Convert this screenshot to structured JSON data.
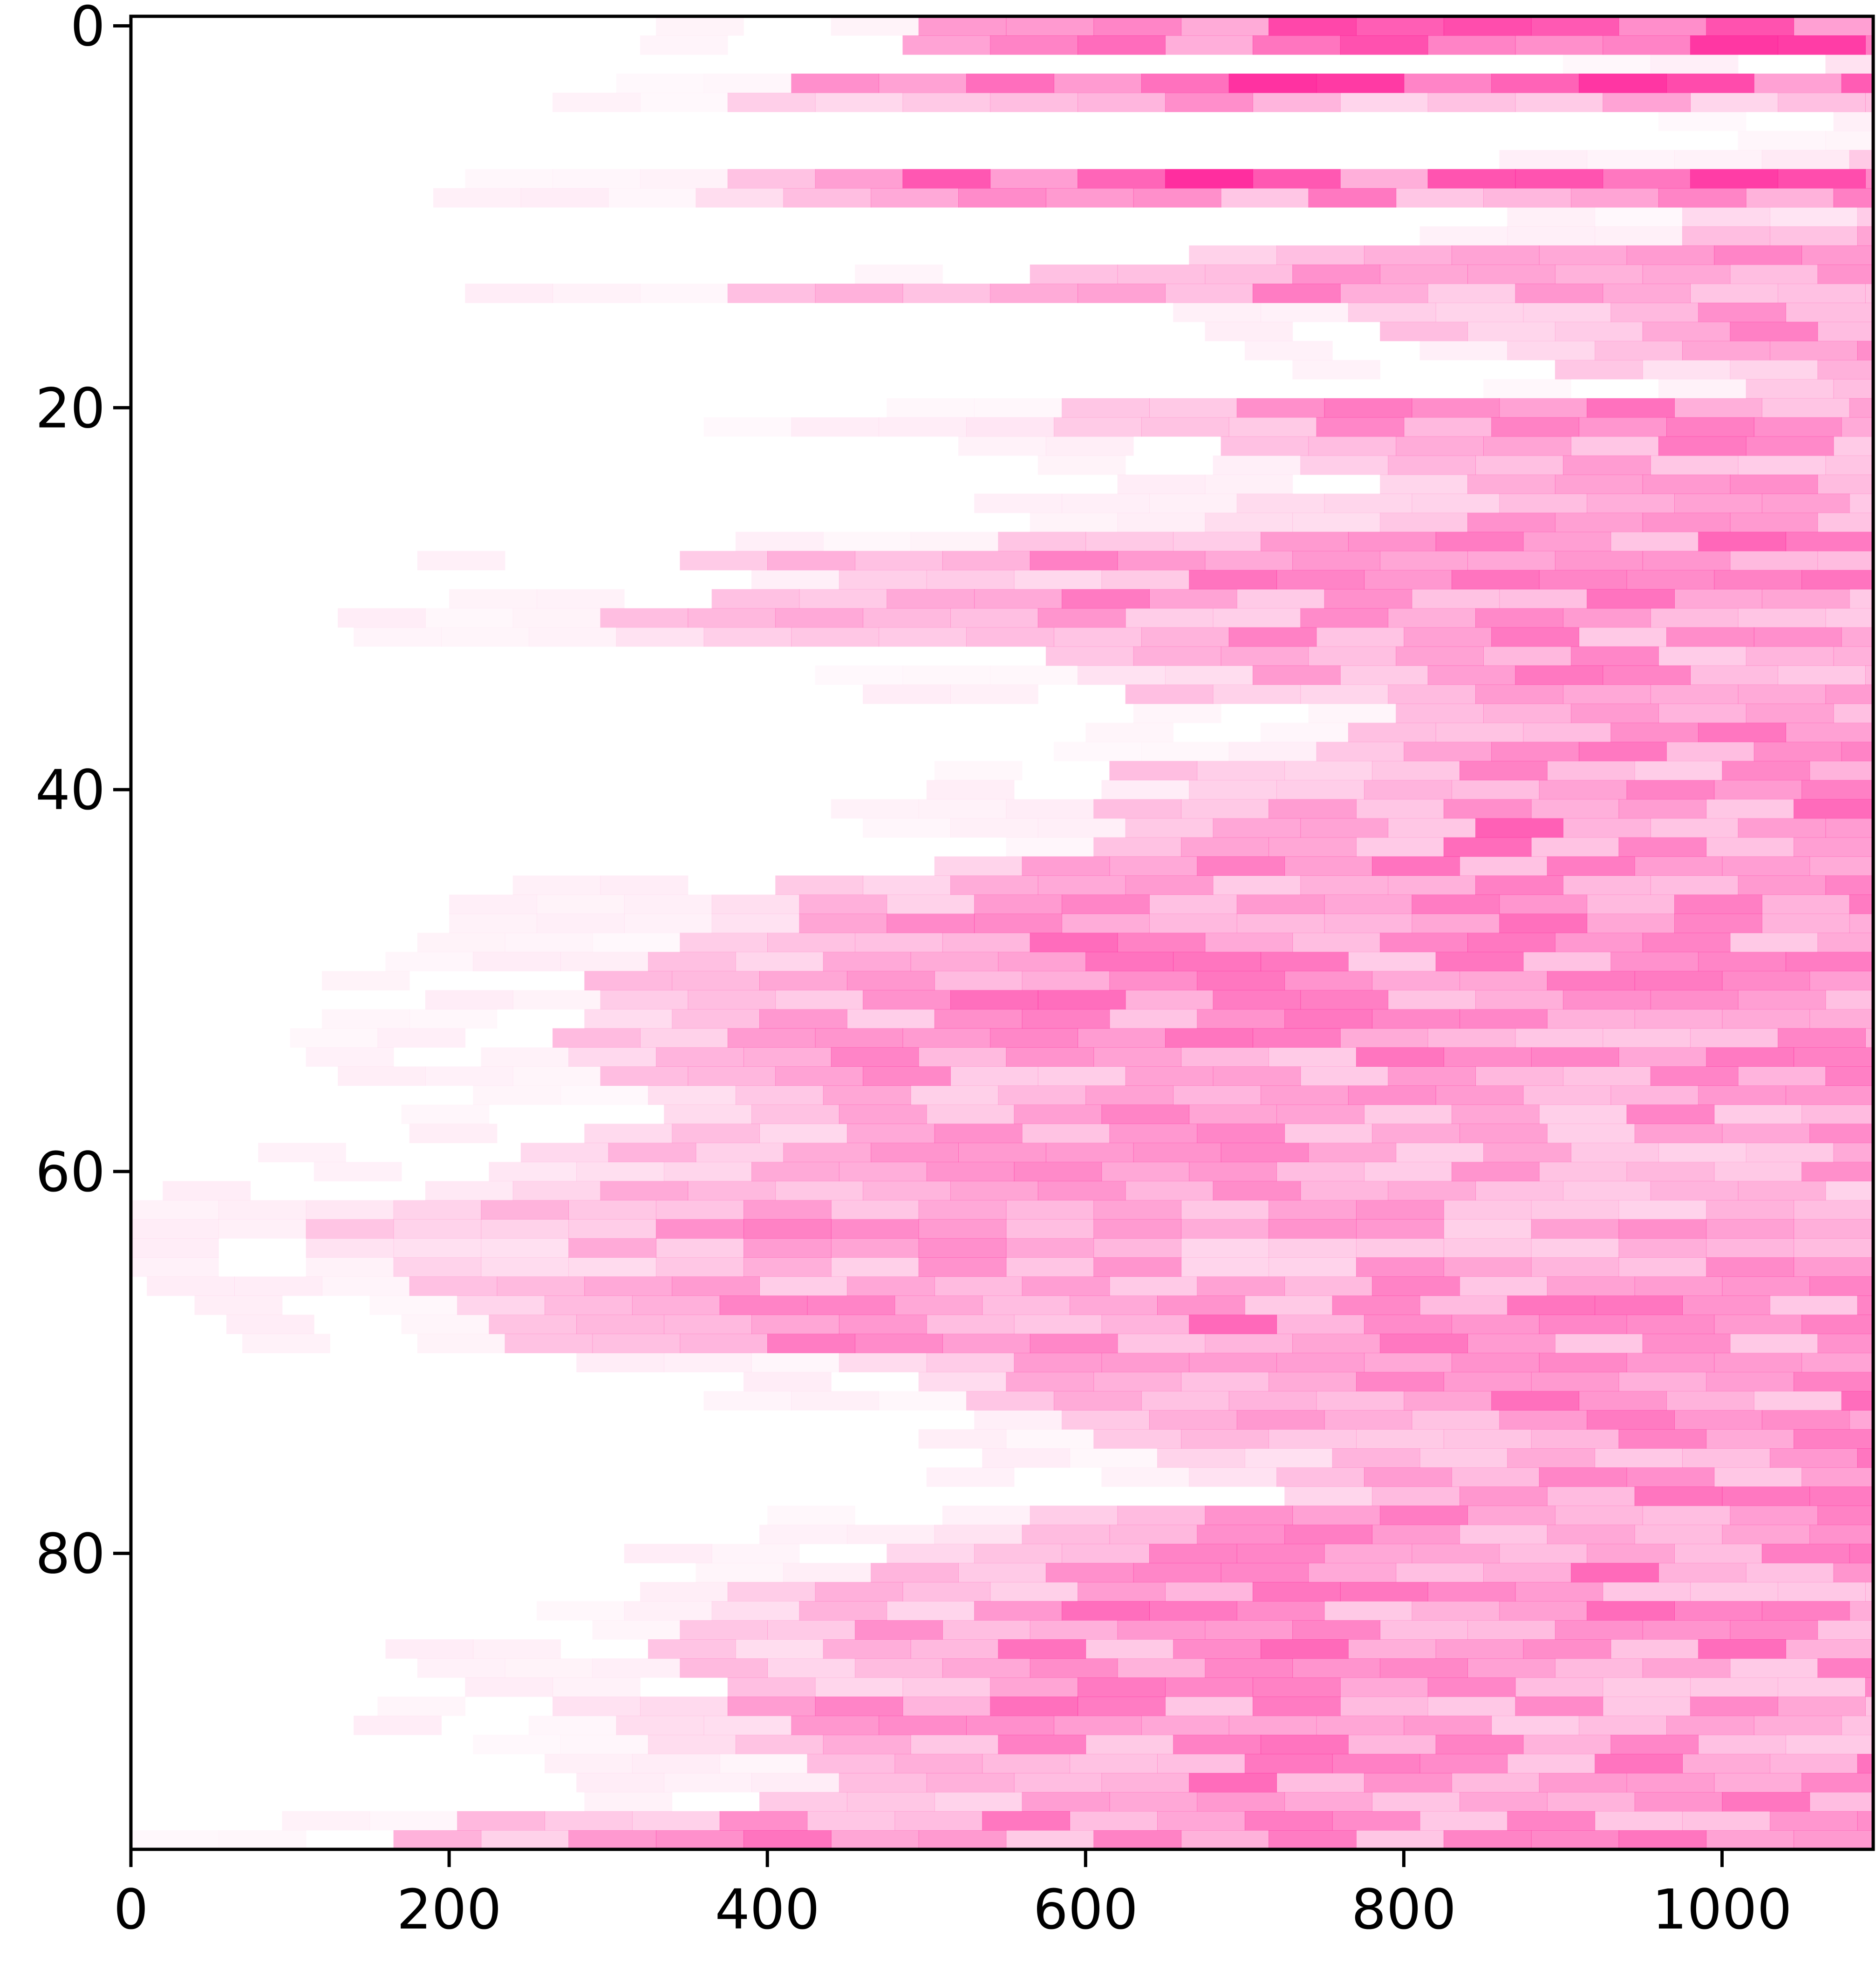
{
  "chart_data": {
    "type": "heatmap",
    "title": "",
    "xlabel": "",
    "ylabel": "",
    "x_range": [
      0,
      1095
    ],
    "y_range": [
      0,
      95
    ],
    "y_inverted": true,
    "x_ticks": [
      0,
      200,
      400,
      600,
      800,
      1000
    ],
    "y_ticks": [
      0,
      20,
      40,
      60,
      80
    ],
    "x_tick_labels": [
      "0",
      "200",
      "400",
      "600",
      "800",
      "1000"
    ],
    "y_tick_labels": [
      "0",
      "20",
      "40",
      "60",
      "80"
    ],
    "colormap": {
      "low": "#ffffff",
      "high": "#ff1493"
    },
    "value_range": [
      0,
      1
    ],
    "rows": 96,
    "row_onsets": [
      450,
      440,
      1020,
      370,
      330,
      1080,
      1130,
      980,
      330,
      310,
      930,
      930,
      620,
      520,
      330,
      720,
      740,
      820,
      850,
      970,
      540,
      480,
      640,
      690,
      740,
      650,
      630,
      500,
      300,
      400,
      320,
      250,
      260,
      530,
      550,
      580,
      750,
      720,
      700,
      570,
      620,
      560,
      580,
      560,
      460,
      360,
      320,
      320,
      300,
      280,
      240,
      250,
      240,
      220,
      230,
      250,
      280,
      290,
      240,
      200,
      180,
      140,
      110,
      80,
      90,
      120,
      130,
      160,
      180,
      190,
      400,
      450,
      480,
      540,
      560,
      600,
      620,
      680,
      520,
      460,
      430,
      420,
      330,
      320,
      300,
      280,
      300,
      330,
      220,
      260,
      280,
      380,
      400,
      350,
      160,
      120
    ],
    "row_intensity": [
      0.85,
      0.9,
      0.55,
      0.95,
      0.5,
      0.55,
      0.6,
      0.5,
      0.95,
      0.6,
      0.5,
      0.55,
      0.55,
      0.65,
      0.6,
      0.5,
      0.55,
      0.6,
      0.55,
      0.6,
      0.65,
      0.55,
      0.6,
      0.5,
      0.6,
      0.6,
      0.6,
      0.65,
      0.55,
      0.6,
      0.6,
      0.55,
      0.6,
      0.6,
      0.6,
      0.55,
      0.6,
      0.6,
      0.65,
      0.6,
      0.65,
      0.65,
      0.7,
      0.7,
      0.65,
      0.6,
      0.6,
      0.65,
      0.65,
      0.6,
      0.6,
      0.65,
      0.6,
      0.6,
      0.6,
      0.6,
      0.6,
      0.55,
      0.55,
      0.55,
      0.55,
      0.5,
      0.5,
      0.55,
      0.5,
      0.5,
      0.55,
      0.6,
      0.65,
      0.65,
      0.6,
      0.6,
      0.65,
      0.6,
      0.6,
      0.6,
      0.6,
      0.6,
      0.65,
      0.6,
      0.6,
      0.65,
      0.6,
      0.65,
      0.65,
      0.65,
      0.6,
      0.6,
      0.65,
      0.6,
      0.6,
      0.6,
      0.65,
      0.6,
      0.6,
      0.65
    ]
  }
}
